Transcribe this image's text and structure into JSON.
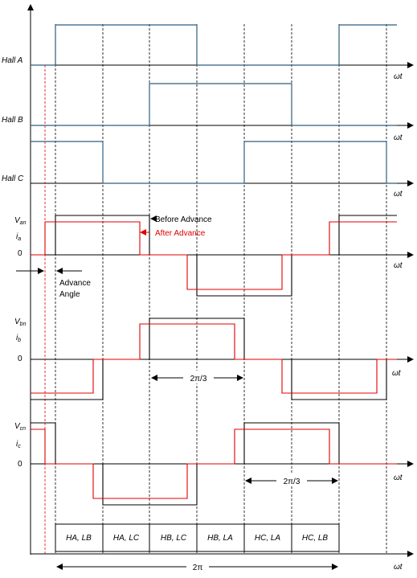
{
  "colors": {
    "hall": "#2e5d7e",
    "before": "#000000",
    "after": "#e00000",
    "grid": "#000000"
  },
  "labels": {
    "hall_a": "Hall A",
    "hall_b": "Hall B",
    "hall_c": "Hall C",
    "omega_t": "ωt",
    "zero": "0",
    "v_an": "V",
    "v_an_sub": "an",
    "i_a": "i",
    "i_a_sub": "a",
    "v_bn": "V",
    "v_bn_sub": "bn",
    "i_b": "i",
    "i_b_sub": "b",
    "v_cn": "V",
    "v_cn_sub": "cn",
    "i_c": "i",
    "i_c_sub": "c",
    "before_advance": "Before Advance",
    "after_advance": "After Advance",
    "advance_angle_line1": "Advance",
    "advance_angle_line2": "Angle",
    "two_pi_over_3": "2π/3",
    "two_pi": "2π"
  },
  "commutation_states": [
    "HA, LB",
    "HA, LC",
    "HB, LC",
    "HB, LA",
    "HC, LA",
    "HC, LB"
  ]
}
